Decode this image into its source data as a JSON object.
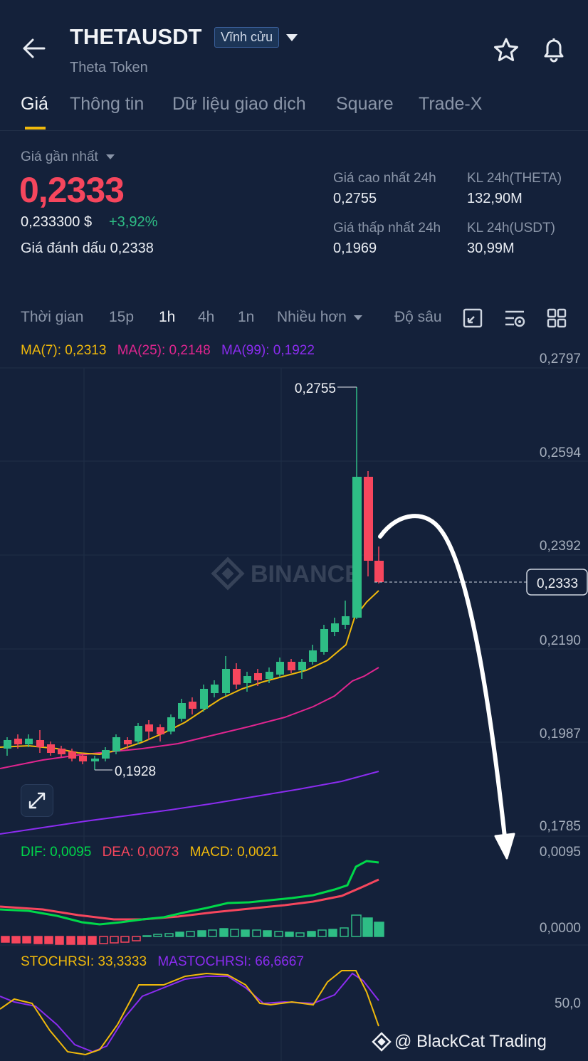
{
  "header": {
    "symbol": "THETAUSDT",
    "contract_type": "Vĩnh cửu",
    "subtitle": "Theta Token"
  },
  "tabs": [
    "Giá",
    "Thông tin",
    "Dữ liệu giao dịch",
    "Square",
    "Trade-X"
  ],
  "price": {
    "label": "Giá gần nhất",
    "last": "0,2333",
    "usd": "0,233300 $",
    "change": "+3,92%",
    "mark_label": "Giá đánh dấu",
    "mark_value": "0,2338"
  },
  "stats": {
    "high_label": "Giá cao nhất 24h",
    "high_value": "0,2755",
    "low_label": "Giá thấp nhất 24h",
    "low_value": "0,1969",
    "vol_theta_label": "KL 24h(THETA)",
    "vol_theta_value": "132,90M",
    "vol_usdt_label": "KL 24h(USDT)",
    "vol_usdt_value": "30,99M"
  },
  "timeframes": {
    "time": "Thời gian",
    "m15": "15p",
    "h1": "1h",
    "h4": "4h",
    "d1": "1n",
    "more": "Nhiều hơn",
    "depth": "Độ sâu"
  },
  "indicators": {
    "ma7": "MA(7): 0,2313",
    "ma25": "MA(25): 0,2148",
    "ma99": "MA(99): 0,1922",
    "dif": "DIF: 0,0095",
    "dea": "DEA: 0,0073",
    "macd": "MACD: 0,0021",
    "stochrsi": "STOCHRSI: 33,3333",
    "mastochrsi": "MASTOCHRSI: 66,6667"
  },
  "axis": {
    "p1": "0,2797",
    "p2": "0,2594",
    "p3": "0,2392",
    "p4": "0,2190",
    "p5": "0,1987",
    "p6": "0,1785",
    "current": "0,2333",
    "macd_top": "0,0095",
    "macd_zero": "0,0000",
    "stoch_mid": "50,0"
  },
  "annotations": {
    "high_marker": "0,2755",
    "low_marker": "0,1928",
    "watermark": "BINANCE",
    "credit": "@ BlackCat Trading"
  },
  "colors": {
    "background": "#14213a",
    "up": "#2ebd85",
    "down": "#f6465d",
    "ma7": "#f0b90b",
    "ma25": "#e0258f",
    "ma99": "#8b2cf0",
    "accent": "#f0b90b"
  }
}
